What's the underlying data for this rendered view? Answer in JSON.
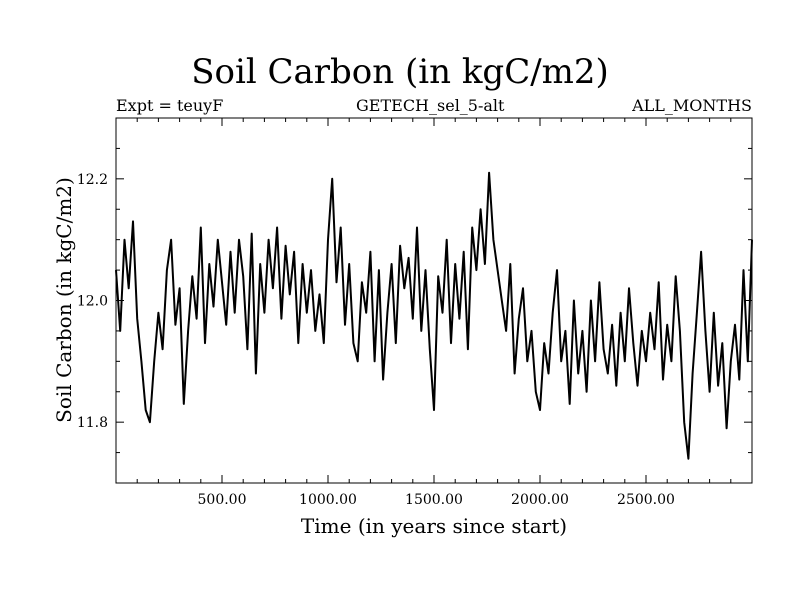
{
  "chart_data": {
    "type": "line",
    "title": "Soil Carbon (in kgC/m2)",
    "annotations": {
      "left": "Expt = teuyF",
      "center": "GETECH_sel_5-alt",
      "right": "ALL_MONTHS"
    },
    "xlabel": "Time (in years since start)",
    "ylabel": "Soil Carbon (in kgC/m2)",
    "xlim": [
      0,
      3000
    ],
    "ylim": [
      11.7,
      12.3
    ],
    "xticks": [
      {
        "value": 500,
        "label": "500.00"
      },
      {
        "value": 1000,
        "label": "1000.00"
      },
      {
        "value": 1500,
        "label": "1500.00"
      },
      {
        "value": 2000,
        "label": "2000.00"
      },
      {
        "value": 2500,
        "label": "2500.00"
      }
    ],
    "yticks": [
      {
        "value": 11.8,
        "label": "11.8"
      },
      {
        "value": 12.0,
        "label": "12.0"
      },
      {
        "value": 12.2,
        "label": "12.2"
      }
    ],
    "grid": false,
    "color": "#000000",
    "series": [
      {
        "x": [
          0,
          20,
          40,
          60,
          80,
          100,
          120,
          140,
          160,
          180,
          200,
          220,
          240,
          260,
          280,
          300,
          320,
          340,
          360,
          380,
          400,
          420,
          440,
          460,
          480,
          500,
          520,
          540,
          560,
          580,
          600,
          620,
          640,
          660,
          680,
          700,
          720,
          740,
          760,
          780,
          800,
          820,
          840,
          860,
          880,
          900,
          920,
          940,
          960,
          980,
          1000,
          1020,
          1040,
          1060,
          1080,
          1100,
          1120,
          1140,
          1160,
          1180,
          1200,
          1220,
          1240,
          1260,
          1280,
          1300,
          1320,
          1340,
          1360,
          1380,
          1400,
          1420,
          1440,
          1460,
          1480,
          1500,
          1520,
          1540,
          1560,
          1580,
          1600,
          1620,
          1640,
          1660,
          1680,
          1700,
          1720,
          1740,
          1760,
          1780,
          1800,
          1820,
          1840,
          1860,
          1880,
          1900,
          1920,
          1940,
          1960,
          1980,
          2000,
          2020,
          2040,
          2060,
          2080,
          2100,
          2120,
          2140,
          2160,
          2180,
          2200,
          2220,
          2240,
          2260,
          2280,
          2300,
          2320,
          2340,
          2360,
          2380,
          2400,
          2420,
          2440,
          2460,
          2480,
          2500,
          2520,
          2540,
          2560,
          2580,
          2600,
          2620,
          2640,
          2660,
          2680,
          2700,
          2720,
          2740,
          2760,
          2780,
          2800,
          2820,
          2840,
          2860,
          2880,
          2900,
          2920,
          2940,
          2960,
          2980,
          3000
        ],
        "y": [
          12.05,
          11.95,
          12.1,
          12.02,
          12.13,
          11.97,
          11.9,
          11.82,
          11.8,
          11.9,
          11.98,
          11.92,
          12.05,
          12.1,
          11.96,
          12.02,
          11.83,
          11.95,
          12.04,
          11.97,
          12.12,
          11.93,
          12.06,
          11.99,
          12.1,
          12.03,
          11.96,
          12.08,
          11.98,
          12.1,
          12.04,
          11.92,
          12.11,
          11.88,
          12.06,
          11.98,
          12.1,
          12.02,
          12.12,
          11.97,
          12.09,
          12.01,
          12.08,
          11.93,
          12.06,
          11.98,
          12.05,
          11.95,
          12.01,
          11.93,
          12.1,
          12.2,
          12.03,
          12.12,
          11.96,
          12.06,
          11.93,
          11.9,
          12.03,
          11.98,
          12.08,
          11.9,
          12.05,
          11.87,
          11.98,
          12.06,
          11.93,
          12.09,
          12.02,
          12.07,
          11.97,
          12.12,
          11.95,
          12.05,
          11.92,
          11.82,
          12.04,
          11.98,
          12.1,
          11.93,
          12.06,
          11.97,
          12.08,
          11.92,
          12.12,
          12.05,
          12.15,
          12.06,
          12.21,
          12.1,
          12.05,
          12.0,
          11.95,
          12.06,
          11.88,
          11.97,
          12.02,
          11.9,
          11.95,
          11.85,
          11.82,
          11.93,
          11.88,
          11.98,
          12.05,
          11.9,
          11.95,
          11.83,
          12.0,
          11.88,
          11.95,
          11.85,
          12.0,
          11.9,
          12.03,
          11.92,
          11.88,
          11.96,
          11.86,
          11.98,
          11.9,
          12.02,
          11.93,
          11.86,
          11.95,
          11.9,
          11.98,
          11.92,
          12.03,
          11.87,
          11.96,
          11.9,
          12.04,
          11.95,
          11.8,
          11.74,
          11.88,
          11.98,
          12.08,
          11.95,
          11.85,
          11.98,
          11.86,
          11.93,
          11.79,
          11.9,
          11.96,
          11.87,
          12.05,
          11.9,
          12.1
        ]
      }
    ]
  }
}
